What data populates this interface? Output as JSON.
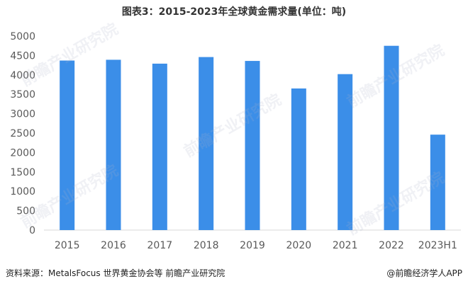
{
  "title": "图表3：2015-2023年全球黄金需求量(单位：吨)",
  "source": "资料来源：MetalsFocus 世界黄金协会等 前瞻产业研究院",
  "brand": "@前瞻经济学人APP",
  "watermark_text": "前瞻产业研究院",
  "colors": {
    "bar": "#3b8ee8",
    "axis_text": "#595959",
    "axis_line": "#d9d9d9"
  },
  "chart_data": {
    "type": "bar",
    "title": "图表3：2015-2023年全球黄金需求量(单位：吨)",
    "categories": [
      "2015",
      "2016",
      "2017",
      "2018",
      "2019",
      "2020",
      "2021",
      "2022",
      "2023H1"
    ],
    "values": [
      4370,
      4390,
      4290,
      4460,
      4360,
      3650,
      4020,
      4750,
      2460
    ],
    "ylim": [
      0,
      5000
    ],
    "yticks": [
      0,
      500,
      1000,
      1500,
      2000,
      2500,
      3000,
      3500,
      4000,
      4500,
      5000
    ],
    "xlabel": "",
    "ylabel": "",
    "grid": false,
    "legend": "none"
  }
}
